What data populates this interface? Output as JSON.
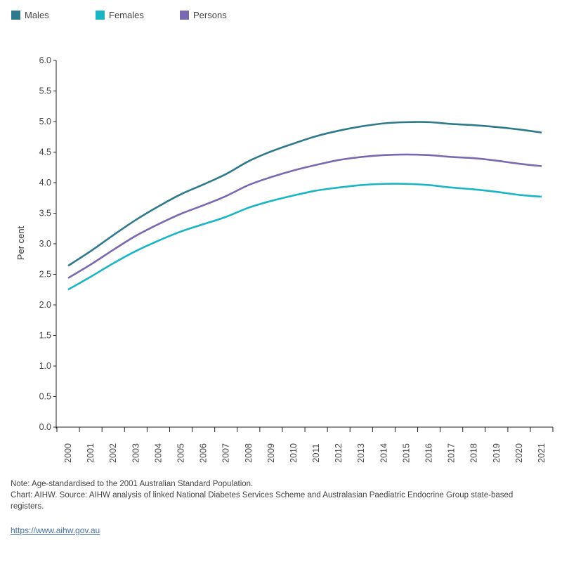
{
  "chart_data": {
    "type": "line",
    "title": "",
    "xlabel": "",
    "ylabel": "Per cent",
    "ylim": [
      0,
      6
    ],
    "y_ticks": [
      "0.0",
      "0.5",
      "1.0",
      "1.5",
      "2.0",
      "2.5",
      "3.0",
      "3.5",
      "4.0",
      "4.5",
      "5.0",
      "5.5",
      "6.0"
    ],
    "x": [
      "2000",
      "2001",
      "2002",
      "2003",
      "2004",
      "2005",
      "2006",
      "2007",
      "2008",
      "2009",
      "2010",
      "2011",
      "2012",
      "2013",
      "2014",
      "2015",
      "2016",
      "2017",
      "2018",
      "2019",
      "2020",
      "2021"
    ],
    "series": [
      {
        "name": "Males",
        "color": "#2e7a8c",
        "values": [
          2.64,
          2.88,
          3.14,
          3.39,
          3.61,
          3.81,
          3.97,
          4.14,
          4.35,
          4.51,
          4.64,
          4.76,
          4.85,
          4.92,
          4.97,
          4.99,
          4.99,
          4.96,
          4.94,
          4.91,
          4.87,
          4.82
        ]
      },
      {
        "name": "Females",
        "color": "#1ab5c5",
        "values": [
          2.25,
          2.46,
          2.68,
          2.88,
          3.05,
          3.2,
          3.32,
          3.44,
          3.59,
          3.7,
          3.79,
          3.87,
          3.92,
          3.96,
          3.98,
          3.98,
          3.96,
          3.92,
          3.89,
          3.85,
          3.8,
          3.77
        ]
      },
      {
        "name": "Persons",
        "color": "#7a68b0",
        "values": [
          2.44,
          2.66,
          2.9,
          3.13,
          3.32,
          3.49,
          3.63,
          3.78,
          3.96,
          4.09,
          4.2,
          4.29,
          4.37,
          4.42,
          4.45,
          4.46,
          4.45,
          4.42,
          4.4,
          4.36,
          4.31,
          4.27
        ]
      }
    ],
    "legend_position": "top-left",
    "grid": false
  },
  "footer": {
    "note": "Note: Age-standardised to the 2001 Australian Standard Population.",
    "source": "Chart: AIHW.  Source: AIHW analysis of linked National Diabetes Services Scheme and Australasian Paediatric Endocrine Group state-based registers.",
    "link": "https://www.aihw.gov.au"
  }
}
